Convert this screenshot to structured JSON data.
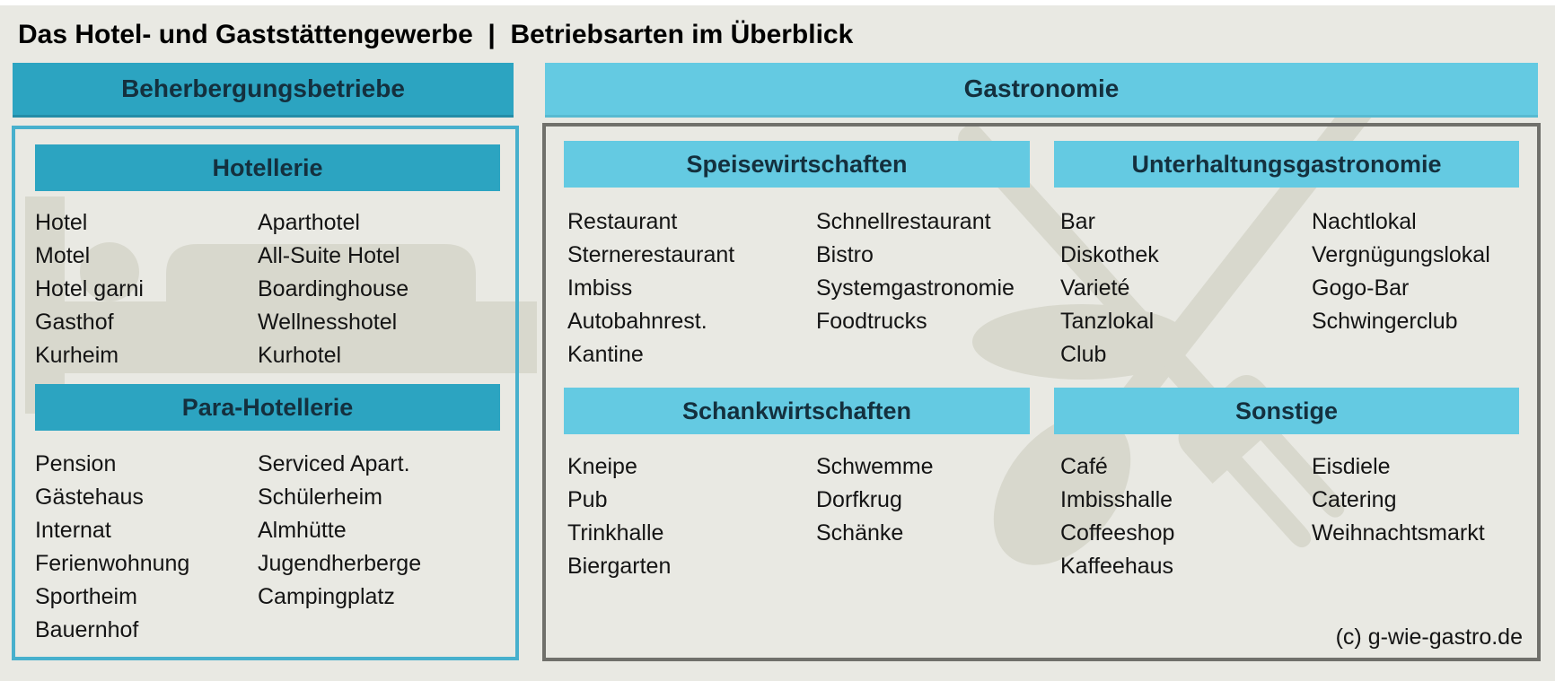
{
  "title": "Das Hotel- und Gaststättengewerbe  |  Betriebsarten im Überblick",
  "colors": {
    "bg": "#e9e9e3",
    "watermark": "#d8d8cd",
    "teal": "#2ca4c1",
    "lightblue": "#64cae2",
    "bartext": "#14303e",
    "leftborder": "#47b0cd",
    "rightborder": "#70706b"
  },
  "left": {
    "header": "Beherbergungsbetriebe",
    "sections": [
      {
        "title": "Hotellerie",
        "col1": [
          "Hotel",
          "Motel",
          "Hotel garni",
          "Gasthof",
          "Kurheim"
        ],
        "col2": [
          "Aparthotel",
          "All-Suite Hotel",
          "Boardinghouse",
          "Wellnesshotel",
          "Kurhotel"
        ]
      },
      {
        "title": "Para-Hotellerie",
        "col1": [
          "Pension",
          "Gästehaus",
          "Internat",
          "Ferienwohnung",
          "Sportheim",
          "Bauernhof"
        ],
        "col2": [
          "Serviced Apart.",
          "Schülerheim",
          "Almhütte",
          "Jugendherberge",
          "Campingplatz"
        ]
      }
    ]
  },
  "right": {
    "header": "Gastronomie",
    "sections": [
      {
        "title": "Speisewirtschaften",
        "col1": [
          "Restaurant",
          "Sternerestaurant",
          "Imbiss",
          "Autobahnrest.",
          "Kantine"
        ],
        "col2": [
          "Schnellrestaurant",
          "Bistro",
          "Systemgastronomie",
          "Foodtrucks"
        ]
      },
      {
        "title": "Unterhaltungsgastronomie",
        "col1": [
          "Bar",
          "Diskothek",
          "Varieté",
          "Tanzlokal",
          "Club"
        ],
        "col2": [
          "Nachtlokal",
          "Vergnügungslokal",
          "Gogo-Bar",
          "Schwingerclub"
        ]
      },
      {
        "title": "Schankwirtschaften",
        "col1": [
          "Kneipe",
          "Pub",
          "Trinkhalle",
          "Biergarten"
        ],
        "col2": [
          "Schwemme",
          "Dorfkrug",
          "Schänke"
        ]
      },
      {
        "title": "Sonstige",
        "col1": [
          "Café",
          "Imbisshalle",
          "Coffeeshop",
          "Kaffeehaus"
        ],
        "col2": [
          "Eisdiele",
          "Catering",
          "Weihnachtsmarkt"
        ]
      }
    ],
    "copyright": "(c) g-wie-gastro.de"
  },
  "watermark_icons": [
    "bed-icon",
    "crossed-fork-and-spoon-icon"
  ]
}
